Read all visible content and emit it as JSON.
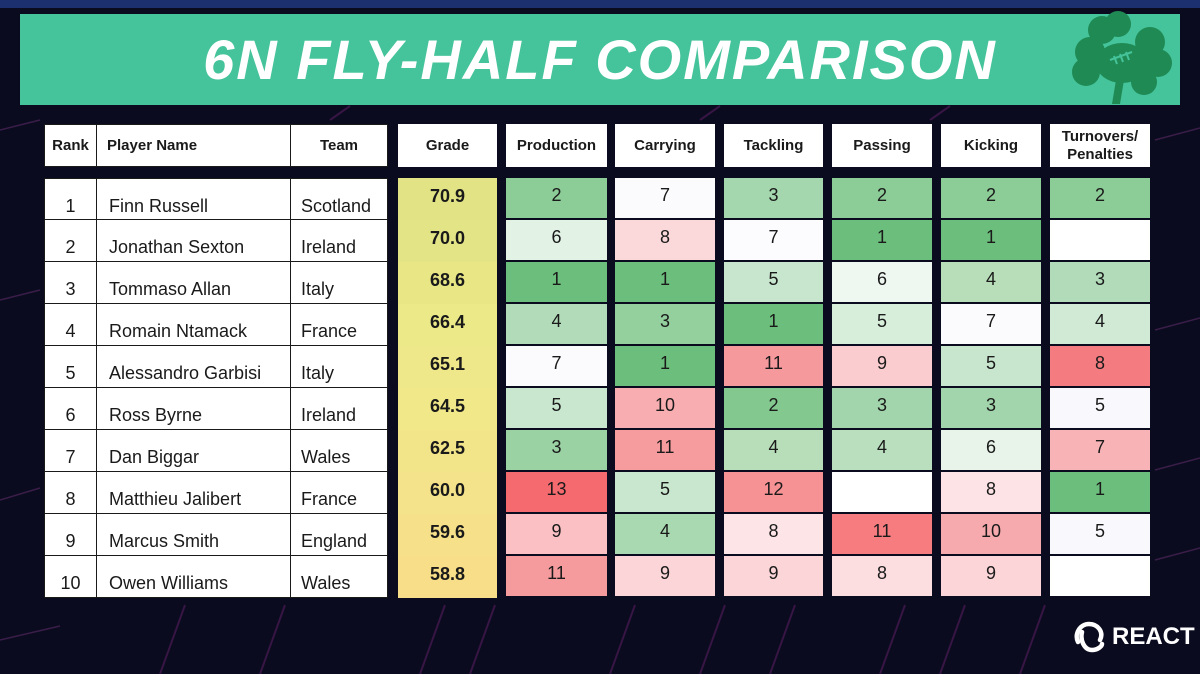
{
  "title": "6N FLY-HALF COMPARISON",
  "headers": {
    "rank": "Rank",
    "player": "Player Name",
    "team": "Team",
    "grade": "Grade",
    "production": "Production",
    "carrying": "Carrying",
    "tackling": "Tackling",
    "passing": "Passing",
    "kicking": "Kicking",
    "turnovers_line1": "Turnovers/",
    "turnovers_line2": "Penalties"
  },
  "rows": [
    {
      "rank": "1",
      "player": "Finn Russell",
      "team": "Scotland",
      "grade": "70.9",
      "production": "2",
      "carrying": "7",
      "tackling": "3",
      "passing": "2",
      "kicking": "2",
      "turnovers": "2"
    },
    {
      "rank": "2",
      "player": "Jonathan Sexton",
      "team": "Ireland",
      "grade": "70.0",
      "production": "6",
      "carrying": "8",
      "tackling": "7",
      "passing": "1",
      "kicking": "1",
      "turnovers": ""
    },
    {
      "rank": "3",
      "player": "Tommaso Allan",
      "team": "Italy",
      "grade": "68.6",
      "production": "1",
      "carrying": "1",
      "tackling": "5",
      "passing": "6",
      "kicking": "4",
      "turnovers": "3"
    },
    {
      "rank": "4",
      "player": "Romain Ntamack",
      "team": "France",
      "grade": "66.4",
      "production": "4",
      "carrying": "3",
      "tackling": "1",
      "passing": "5",
      "kicking": "7",
      "turnovers": "4"
    },
    {
      "rank": "5",
      "player": "Alessandro Garbisi",
      "team": "Italy",
      "grade": "65.1",
      "production": "7",
      "carrying": "1",
      "tackling": "11",
      "passing": "9",
      "kicking": "5",
      "turnovers": "8"
    },
    {
      "rank": "6",
      "player": "Ross Byrne",
      "team": "Ireland",
      "grade": "64.5",
      "production": "5",
      "carrying": "10",
      "tackling": "2",
      "passing": "3",
      "kicking": "3",
      "turnovers": "5"
    },
    {
      "rank": "7",
      "player": "Dan Biggar",
      "team": "Wales",
      "grade": "62.5",
      "production": "3",
      "carrying": "11",
      "tackling": "4",
      "passing": "4",
      "kicking": "6",
      "turnovers": "7"
    },
    {
      "rank": "8",
      "player": "Matthieu Jalibert",
      "team": "France",
      "grade": "60.0",
      "production": "13",
      "carrying": "5",
      "tackling": "12",
      "passing": "",
      "kicking": "8",
      "turnovers": "1"
    },
    {
      "rank": "9",
      "player": "Marcus Smith",
      "team": "England",
      "grade": "59.6",
      "production": "9",
      "carrying": "4",
      "tackling": "8",
      "passing": "11",
      "kicking": "10",
      "turnovers": "5"
    },
    {
      "rank": "10",
      "player": "Owen Williams",
      "team": "Wales",
      "grade": "58.8",
      "production": "11",
      "carrying": "9",
      "tackling": "9",
      "passing": "8",
      "kicking": "9",
      "turnovers": ""
    }
  ],
  "colors": {
    "stat": [
      [
        "#8ccc96",
        "#fbfbfd",
        "#a4d7ad",
        "#8ccc96",
        "#8ccc96",
        "#8ccc96"
      ],
      [
        "#e2f2e5",
        "#fbd8da",
        "#fcfbfd",
        "#6bbe7b",
        "#6bbe7b",
        "#ffffff"
      ],
      [
        "#6bbe7b",
        "#6bbe7b",
        "#c7e6cd",
        "#eef7f0",
        "#b7deb9",
        "#b1dbb9"
      ],
      [
        "#b1dbb9",
        "#94cf9e",
        "#6bbe7b",
        "#d7eedb",
        "#fbfbfd",
        "#d0ead5"
      ],
      [
        "#fbfbfd",
        "#6bbe7b",
        "#f6999c",
        "#fbcccf",
        "#c7e6cd",
        "#f47c80"
      ],
      [
        "#c9e7ce",
        "#f8aeb1",
        "#83c88f",
        "#a2d5ab",
        "#a2d5ab",
        "#f9f9fd"
      ],
      [
        "#9ad2a4",
        "#f69c9f",
        "#b7deb9",
        "#b9dfbf",
        "#e8f4ea",
        "#f8b3b6"
      ],
      [
        "#f56a6e",
        "#c9e7ce",
        "#f69194",
        "#ffffff",
        "#fde3e5",
        "#6bbe7b"
      ],
      [
        "#fac0c3",
        "#a8d9b0",
        "#fde4e6",
        "#f77c80",
        "#f7aaad",
        "#f9f9fd"
      ],
      [
        "#f59a9d",
        "#fbd5d8",
        "#fbd5d8",
        "#fcdde0",
        "#fbd5d8",
        "#ffffff"
      ]
    ],
    "grade": [
      "#e1e384",
      "#e3e486",
      "#e8e685",
      "#ecea88",
      "#efe88a",
      "#f0e889",
      "#f2e589",
      "#f4e38a",
      "#f6e08a",
      "#f8de88"
    ],
    "title_bar": "#45c39a"
  },
  "brand": "REACT"
}
